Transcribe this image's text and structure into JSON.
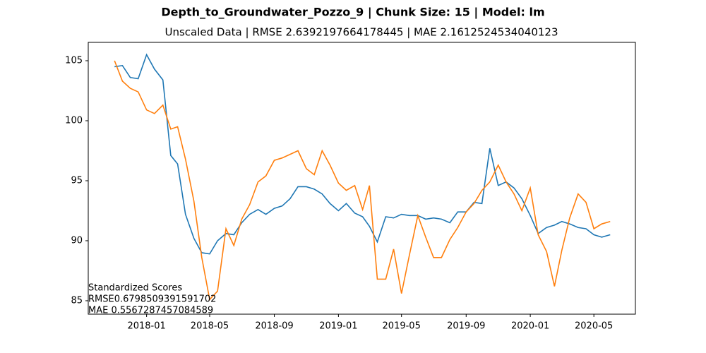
{
  "chart_data": {
    "type": "line",
    "title": "Depth_to_Groundwater_Pozzo_9 | Chunk Size: 15 | Model: lm",
    "subtitle": "Unscaled Data | RMSE 2.6392197664178445 | MAE 2.1612524534040123",
    "annotations": [
      "Standardized Scores",
      "RMSE0.6798509391591702",
      "MAE 0.5567287457084589"
    ],
    "x": [
      "2017-11-01",
      "2017-11-16",
      "2017-12-01",
      "2017-12-16",
      "2018-01-01",
      "2018-01-16",
      "2018-02-01",
      "2018-02-16",
      "2018-03-01",
      "2018-03-16",
      "2018-04-01",
      "2018-04-16",
      "2018-05-01",
      "2018-05-16",
      "2018-06-01",
      "2018-06-16",
      "2018-07-01",
      "2018-07-16",
      "2018-08-01",
      "2018-08-16",
      "2018-09-01",
      "2018-09-16",
      "2018-10-01",
      "2018-10-16",
      "2018-11-01",
      "2018-11-16",
      "2018-12-01",
      "2018-12-16",
      "2019-01-01",
      "2019-01-16",
      "2019-02-01",
      "2019-02-16",
      "2019-03-01",
      "2019-03-16",
      "2019-04-01",
      "2019-04-16",
      "2019-05-01",
      "2019-05-16",
      "2019-06-01",
      "2019-06-16",
      "2019-07-01",
      "2019-07-16",
      "2019-08-01",
      "2019-08-16",
      "2019-09-01",
      "2019-09-16",
      "2019-10-01",
      "2019-10-16",
      "2019-11-01",
      "2019-11-16",
      "2019-12-01",
      "2019-12-16",
      "2020-01-01",
      "2020-01-16",
      "2020-02-01",
      "2020-02-16",
      "2020-03-01",
      "2020-03-16",
      "2020-04-01",
      "2020-04-16",
      "2020-05-01",
      "2020-05-16",
      "2020-06-01"
    ],
    "series": [
      {
        "color": "#1f77b4",
        "values": [
          104.5,
          104.6,
          103.6,
          103.5,
          105.5,
          104.3,
          103.4,
          97.1,
          96.4,
          92.2,
          90.2,
          89.0,
          88.9,
          90.0,
          90.6,
          90.5,
          91.5,
          92.2,
          92.6,
          92.2,
          92.7,
          92.9,
          93.5,
          94.5,
          94.5,
          94.3,
          93.9,
          93.1,
          92.5,
          93.1,
          92.3,
          92.0,
          91.2,
          89.9,
          92.0,
          91.9,
          92.2,
          92.1,
          92.1,
          91.8,
          91.9,
          91.8,
          91.5,
          92.4,
          92.4,
          93.2,
          93.1,
          97.7,
          94.6,
          94.9,
          94.4,
          93.5,
          92.1,
          90.6,
          91.1,
          91.3,
          91.6,
          91.4,
          91.1,
          91.0,
          90.5,
          90.3,
          90.5
        ]
      },
      {
        "color": "#ff7f0e",
        "values": [
          105.0,
          103.3,
          102.7,
          102.4,
          100.9,
          100.6,
          101.3,
          99.3,
          99.5,
          96.8,
          93.3,
          88.6,
          85.1,
          85.8,
          91.0,
          89.6,
          91.8,
          93.0,
          94.9,
          95.4,
          96.7,
          96.9,
          97.2,
          97.5,
          96.0,
          95.5,
          97.5,
          96.3,
          94.8,
          94.2,
          94.6,
          92.6,
          94.6,
          86.8,
          86.8,
          89.3,
          85.6,
          88.8,
          92.1,
          90.3,
          88.6,
          88.6,
          90.1,
          91.1,
          92.4,
          93.1,
          94.2,
          94.9,
          96.3,
          94.9,
          93.9,
          92.5,
          94.4,
          90.5,
          89.1,
          86.2,
          89.2,
          91.9,
          93.9,
          93.2,
          91.0,
          91.4,
          91.6
        ]
      }
    ],
    "xlim": [
      "2017-09-12",
      "2020-07-19"
    ],
    "xticks": [
      "2018-01",
      "2018-05",
      "2018-09",
      "2019-01",
      "2019-05",
      "2019-09",
      "2020-01",
      "2020-05"
    ],
    "ylim": [
      83.88,
      106.53
    ],
    "yticks": [
      85,
      90,
      95,
      100,
      105
    ]
  }
}
